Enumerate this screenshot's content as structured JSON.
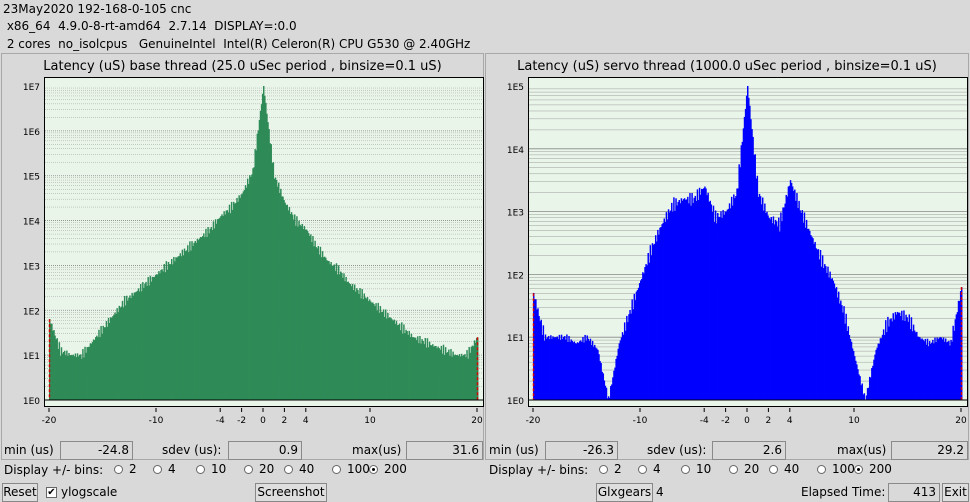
{
  "header": {
    "line1": "23May2020 192-168-0-105 cnc",
    "line2": " x86_64  4.9.0-8-rt-amd64  2.7.14  DISPLAY=:0.0",
    "line3": " 2 cores  no_isolcpus   GenuineIntel  Intel(R) Celeron(R) CPU G530 @ 2.40GHz"
  },
  "panels": [
    {
      "title": "Latency (uS) base thread (25.0 uSec period , binsize=0.1 uS)",
      "color": "#2e8b57",
      "y_ticks": [
        "1E0",
        "1E1",
        "1E2",
        "1E3",
        "1E4",
        "1E5",
        "1E6",
        "1E7"
      ],
      "x_ticks": [
        "-20",
        "-10",
        "-4",
        "-2",
        "0",
        "2",
        "4",
        "10",
        "20"
      ],
      "min_label": "min (us)",
      "min": "-24.8",
      "sdev_label": "sdev (us):",
      "sdev": "0.9",
      "max_label": "max(us)",
      "max": "31.6",
      "bins_label": "Display +/- bins:",
      "bins": [
        "2",
        "4",
        "10",
        "20",
        "40",
        "100",
        "200"
      ],
      "selected_bin": "200"
    },
    {
      "title": "Latency (uS) servo thread (1000.0 uSec period , binsize=0.1 uS)",
      "color": "#0000ff",
      "y_ticks": [
        "1E0",
        "1E1",
        "1E2",
        "1E3",
        "1E4",
        "1E5"
      ],
      "x_ticks": [
        "-20",
        "-10",
        "-4",
        "-2",
        "0",
        "2",
        "4",
        "10",
        "20"
      ],
      "min_label": "min (us)",
      "min": "-26.3",
      "sdev_label": "sdev (us):",
      "sdev": "2.6",
      "max_label": "max(us)",
      "max": "29.2",
      "bins_label": "Display +/- bins:",
      "bins": [
        "2",
        "4",
        "10",
        "20",
        "40",
        "100",
        "200"
      ],
      "selected_bin": "200"
    }
  ],
  "footer": {
    "reset": "Reset",
    "ylogscale": "ylogscale",
    "screenshot": "Screenshot",
    "glxgears": "Glxgears",
    "glxgears_count": "4",
    "elapsed_label": "Elapsed Time:",
    "elapsed": "413",
    "exit": "Exit"
  },
  "chart_data": [
    {
      "type": "bar",
      "title": "Latency (uS) base thread (25.0 uSec period , binsize=0.1 uS)",
      "log_y": true,
      "ylim_exp": [
        0,
        7
      ],
      "xlim": [
        -20,
        20
      ],
      "x": [
        -20,
        -19,
        -18,
        -17,
        -16,
        -15,
        -14,
        -13,
        -12,
        -11,
        -10,
        -9,
        -8,
        -7,
        -6,
        -5,
        -4,
        -3,
        -2,
        -1,
        0,
        1,
        2,
        3,
        4,
        5,
        6,
        7,
        8,
        9,
        10,
        11,
        12,
        13,
        14,
        15,
        16,
        17,
        18,
        19,
        20
      ],
      "y_exp": [
        1.8,
        1.1,
        1.0,
        1.0,
        1.3,
        1.6,
        1.9,
        2.2,
        2.4,
        2.6,
        2.8,
        3.0,
        3.2,
        3.4,
        3.6,
        3.8,
        4.1,
        4.3,
        4.6,
        5.1,
        7.0,
        5.0,
        4.4,
        4.0,
        3.8,
        3.4,
        3.1,
        2.9,
        2.6,
        2.4,
        2.2,
        2.0,
        1.8,
        1.6,
        1.4,
        1.3,
        1.2,
        1.1,
        1.0,
        1.0,
        1.4
      ]
    },
    {
      "type": "bar",
      "title": "Latency (uS) servo thread (1000.0 uSec period , binsize=0.1 uS)",
      "log_y": true,
      "ylim_exp": [
        0,
        5
      ],
      "xlim": [
        -20,
        20
      ],
      "x": [
        -20,
        -19,
        -18,
        -17,
        -16,
        -15,
        -14,
        -13,
        -12,
        -11,
        -10,
        -9,
        -8,
        -7,
        -6,
        -5,
        -4,
        -3,
        -2,
        -1,
        0,
        1,
        2,
        3,
        4,
        5,
        6,
        7,
        8,
        9,
        10,
        11,
        12,
        13,
        14,
        15,
        16,
        17,
        18,
        19,
        20
      ],
      "y_exp": [
        1.7,
        1.0,
        1.0,
        1.0,
        0.9,
        1.0,
        0.8,
        0.0,
        0.9,
        1.4,
        1.9,
        2.4,
        2.8,
        3.1,
        3.2,
        3.2,
        3.4,
        2.9,
        3.0,
        3.3,
        5.0,
        3.3,
        2.9,
        2.8,
        3.5,
        3.0,
        2.6,
        2.2,
        1.9,
        1.4,
        0.7,
        0.0,
        0.8,
        1.2,
        1.4,
        1.3,
        1.0,
        0.9,
        1.0,
        0.9,
        1.8
      ]
    }
  ]
}
